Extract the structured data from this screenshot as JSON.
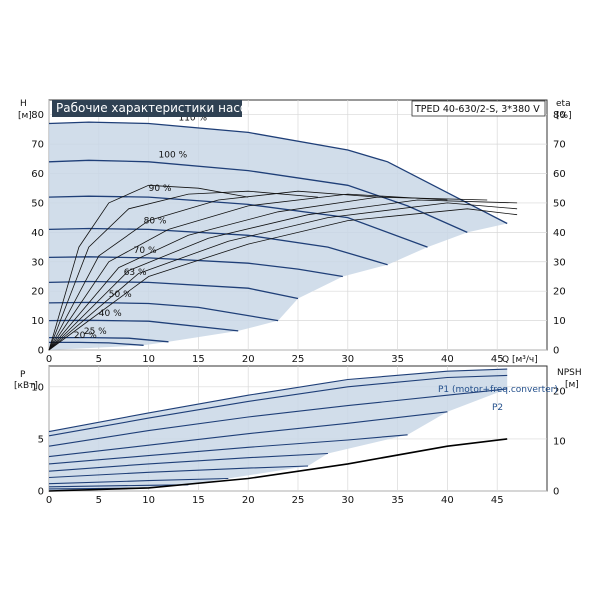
{
  "colors": {
    "envelope": "#c9d7e6",
    "curve": "#1f3f78",
    "eff": "#111111",
    "npsh": "#000000",
    "grid": "#d8d8d8",
    "title_bg": "#2f4153"
  },
  "chart_data": [
    {
      "id": "qh",
      "type": "line",
      "title": "Рабочие характеристики насоса",
      "model": "TPED 40-630/2-S, 3*380 V",
      "ylabel_left": [
        "H",
        "[м]"
      ],
      "ylabel_right": [
        "eta",
        "[%]"
      ],
      "xlabel": "Q [м³/ч]",
      "xlim": [
        0,
        50
      ],
      "ylim": [
        0,
        85
      ],
      "xticks": [
        0,
        5,
        10,
        15,
        20,
        25,
        30,
        35,
        40,
        45
      ],
      "yticks": [
        0,
        10,
        20,
        30,
        40,
        50,
        60,
        70,
        80
      ],
      "grid": true,
      "speed_curves": [
        {
          "label": "110 %",
          "label_at": [
            13.0,
            78.0
          ],
          "points": [
            [
              0,
              77
            ],
            [
              4,
              77.5
            ],
            [
              10,
              77
            ],
            [
              20,
              74
            ],
            [
              30,
              68
            ],
            [
              34,
              64
            ],
            [
              42,
              50
            ],
            [
              46,
              43
            ]
          ]
        },
        {
          "label": "100 %",
          "label_at": [
            11.0,
            65.5
          ],
          "points": [
            [
              0,
              64
            ],
            [
              4,
              64.5
            ],
            [
              10,
              64
            ],
            [
              20,
              61
            ],
            [
              30,
              56
            ],
            [
              36,
              49
            ],
            [
              42,
              40
            ]
          ]
        },
        {
          "label": "90 %",
          "label_at": [
            10.0,
            54.0
          ],
          "points": [
            [
              0,
              52
            ],
            [
              4,
              52.3
            ],
            [
              10,
              52
            ],
            [
              20,
              49.5
            ],
            [
              30,
              45
            ],
            [
              38,
              35
            ]
          ]
        },
        {
          "label": "80 %",
          "label_at": [
            9.5,
            43.0
          ],
          "points": [
            [
              0,
              41
            ],
            [
              4,
              41.3
            ],
            [
              10,
              41
            ],
            [
              20,
              39
            ],
            [
              28,
              35
            ],
            [
              34,
              29
            ]
          ]
        },
        {
          "label": "70 %",
          "label_at": [
            8.5,
            33.0
          ],
          "points": [
            [
              0,
              31.5
            ],
            [
              4,
              31.7
            ],
            [
              10,
              31.3
            ],
            [
              20,
              29.5
            ],
            [
              25,
              27.5
            ],
            [
              29.5,
              25
            ]
          ]
        },
        {
          "label": "63 %",
          "label_at": [
            7.5,
            25.5
          ],
          "points": [
            [
              0,
              23
            ],
            [
              4,
              23.3
            ],
            [
              10,
              23
            ],
            [
              20,
              21
            ],
            [
              25,
              17.5
            ]
          ]
        },
        {
          "label": "50 %",
          "label_at": [
            6.0,
            18.0
          ],
          "points": [
            [
              0,
              16
            ],
            [
              4,
              16.2
            ],
            [
              10,
              15.8
            ],
            [
              15,
              14.5
            ],
            [
              23,
              10
            ]
          ]
        },
        {
          "label": "40 %",
          "label_at": [
            5.0,
            11.5
          ],
          "points": [
            [
              0,
              10
            ],
            [
              4,
              10.1
            ],
            [
              10,
              9.8
            ],
            [
              19,
              6.5
            ]
          ]
        },
        {
          "label": "25 %",
          "label_at": [
            3.5,
            5.5
          ],
          "points": [
            [
              0,
              4.2
            ],
            [
              4,
              4.2
            ],
            [
              8,
              4
            ],
            [
              12,
              2.8
            ]
          ]
        },
        {
          "label": "20 %",
          "label_at": [
            2.5,
            4.0
          ],
          "points": [
            [
              0,
              2.6
            ],
            [
              3,
              2.6
            ],
            [
              6,
              2.4
            ],
            [
              9.5,
              1.6
            ]
          ]
        }
      ],
      "efficiency_curves": [
        {
          "points": [
            [
              0,
              0
            ],
            [
              3,
              35
            ],
            [
              6,
              50
            ],
            [
              10,
              56
            ],
            [
              15,
              55
            ],
            [
              20,
              52
            ]
          ]
        },
        {
          "points": [
            [
              0,
              0
            ],
            [
              4,
              35
            ],
            [
              8,
              48
            ],
            [
              14,
              53
            ],
            [
              20,
              54
            ],
            [
              27,
              52
            ]
          ]
        },
        {
          "points": [
            [
              0,
              0
            ],
            [
              5,
              32
            ],
            [
              10,
              44
            ],
            [
              17,
              51
            ],
            [
              25,
              54
            ],
            [
              33,
              52
            ]
          ]
        },
        {
          "points": [
            [
              0,
              0
            ],
            [
              6,
              30
            ],
            [
              12,
              41
            ],
            [
              20,
              49
            ],
            [
              30,
              53
            ],
            [
              40,
              51
            ]
          ]
        },
        {
          "points": [
            [
              0,
              0
            ],
            [
              7,
              28
            ],
            [
              14,
              39
            ],
            [
              23,
              47
            ],
            [
              33,
              52
            ],
            [
              44,
              51
            ]
          ]
        },
        {
          "points": [
            [
              0,
              0
            ],
            [
              8,
              27
            ],
            [
              16,
              38
            ],
            [
              26,
              46
            ],
            [
              37,
              51
            ],
            [
              47,
              50
            ]
          ]
        },
        {
          "points": [
            [
              0,
              0
            ],
            [
              9,
              26
            ],
            [
              18,
              37
            ],
            [
              28,
              45
            ],
            [
              40,
              50
            ],
            [
              47,
              48
            ]
          ]
        },
        {
          "points": [
            [
              0,
              0
            ],
            [
              10,
              25
            ],
            [
              20,
              36
            ],
            [
              30,
              44
            ],
            [
              42,
              48
            ],
            [
              47,
              46
            ]
          ]
        }
      ]
    },
    {
      "id": "power",
      "type": "line",
      "ylabel_left": [
        "P",
        "[кВт]"
      ],
      "ylabel_right": [
        "NPSH",
        "[м]"
      ],
      "xlim": [
        0,
        50
      ],
      "ylim": [
        0,
        12
      ],
      "yticks": [
        0,
        5,
        10
      ],
      "y2ticks": [
        0,
        10,
        20
      ],
      "grid": true,
      "series_names": [
        "P1 (motor+freq.converter)",
        "P2"
      ],
      "power_curves": [
        {
          "points": [
            [
              0,
              5.7
            ],
            [
              10,
              7.5
            ],
            [
              20,
              9.2
            ],
            [
              30,
              10.7
            ],
            [
              40,
              11.5
            ],
            [
              46,
              11.7
            ]
          ]
        },
        {
          "points": [
            [
              0,
              5.3
            ],
            [
              10,
              7.0
            ],
            [
              20,
              8.6
            ],
            [
              30,
              10.0
            ],
            [
              40,
              10.9
            ],
            [
              46,
              11.1
            ]
          ]
        },
        {
          "points": [
            [
              0,
              4.3
            ],
            [
              10,
              5.8
            ],
            [
              20,
              7.1
            ],
            [
              30,
              8.2
            ],
            [
              40,
              9.2
            ],
            [
              46,
              9.8
            ]
          ]
        },
        {
          "points": [
            [
              0,
              3.3
            ],
            [
              10,
              4.4
            ],
            [
              20,
              5.5
            ],
            [
              30,
              6.5
            ],
            [
              40,
              7.6
            ]
          ]
        },
        {
          "points": [
            [
              0,
              2.6
            ],
            [
              10,
              3.4
            ],
            [
              20,
              4.2
            ],
            [
              30,
              4.9
            ],
            [
              36,
              5.4
            ]
          ]
        },
        {
          "points": [
            [
              0,
              1.9
            ],
            [
              10,
              2.6
            ],
            [
              20,
              3.2
            ],
            [
              28,
              3.6
            ]
          ]
        },
        {
          "points": [
            [
              0,
              1.3
            ],
            [
              10,
              1.8
            ],
            [
              20,
              2.2
            ],
            [
              26,
              2.4
            ]
          ]
        },
        {
          "points": [
            [
              0,
              0.7
            ],
            [
              10,
              1.0
            ],
            [
              18,
              1.2
            ]
          ]
        },
        {
          "points": [
            [
              0,
              0.4
            ],
            [
              10,
              0.55
            ],
            [
              14,
              0.6
            ]
          ]
        },
        {
          "points": [
            [
              0,
              0.2
            ],
            [
              6,
              0.25
            ],
            [
              10,
              0.3
            ]
          ]
        }
      ],
      "npsh_curve": {
        "points": [
          [
            0,
            0
          ],
          [
            10,
            0.3
          ],
          [
            20,
            1.2
          ],
          [
            30,
            2.6
          ],
          [
            40,
            4.3
          ],
          [
            46,
            5.0
          ]
        ]
      }
    }
  ]
}
